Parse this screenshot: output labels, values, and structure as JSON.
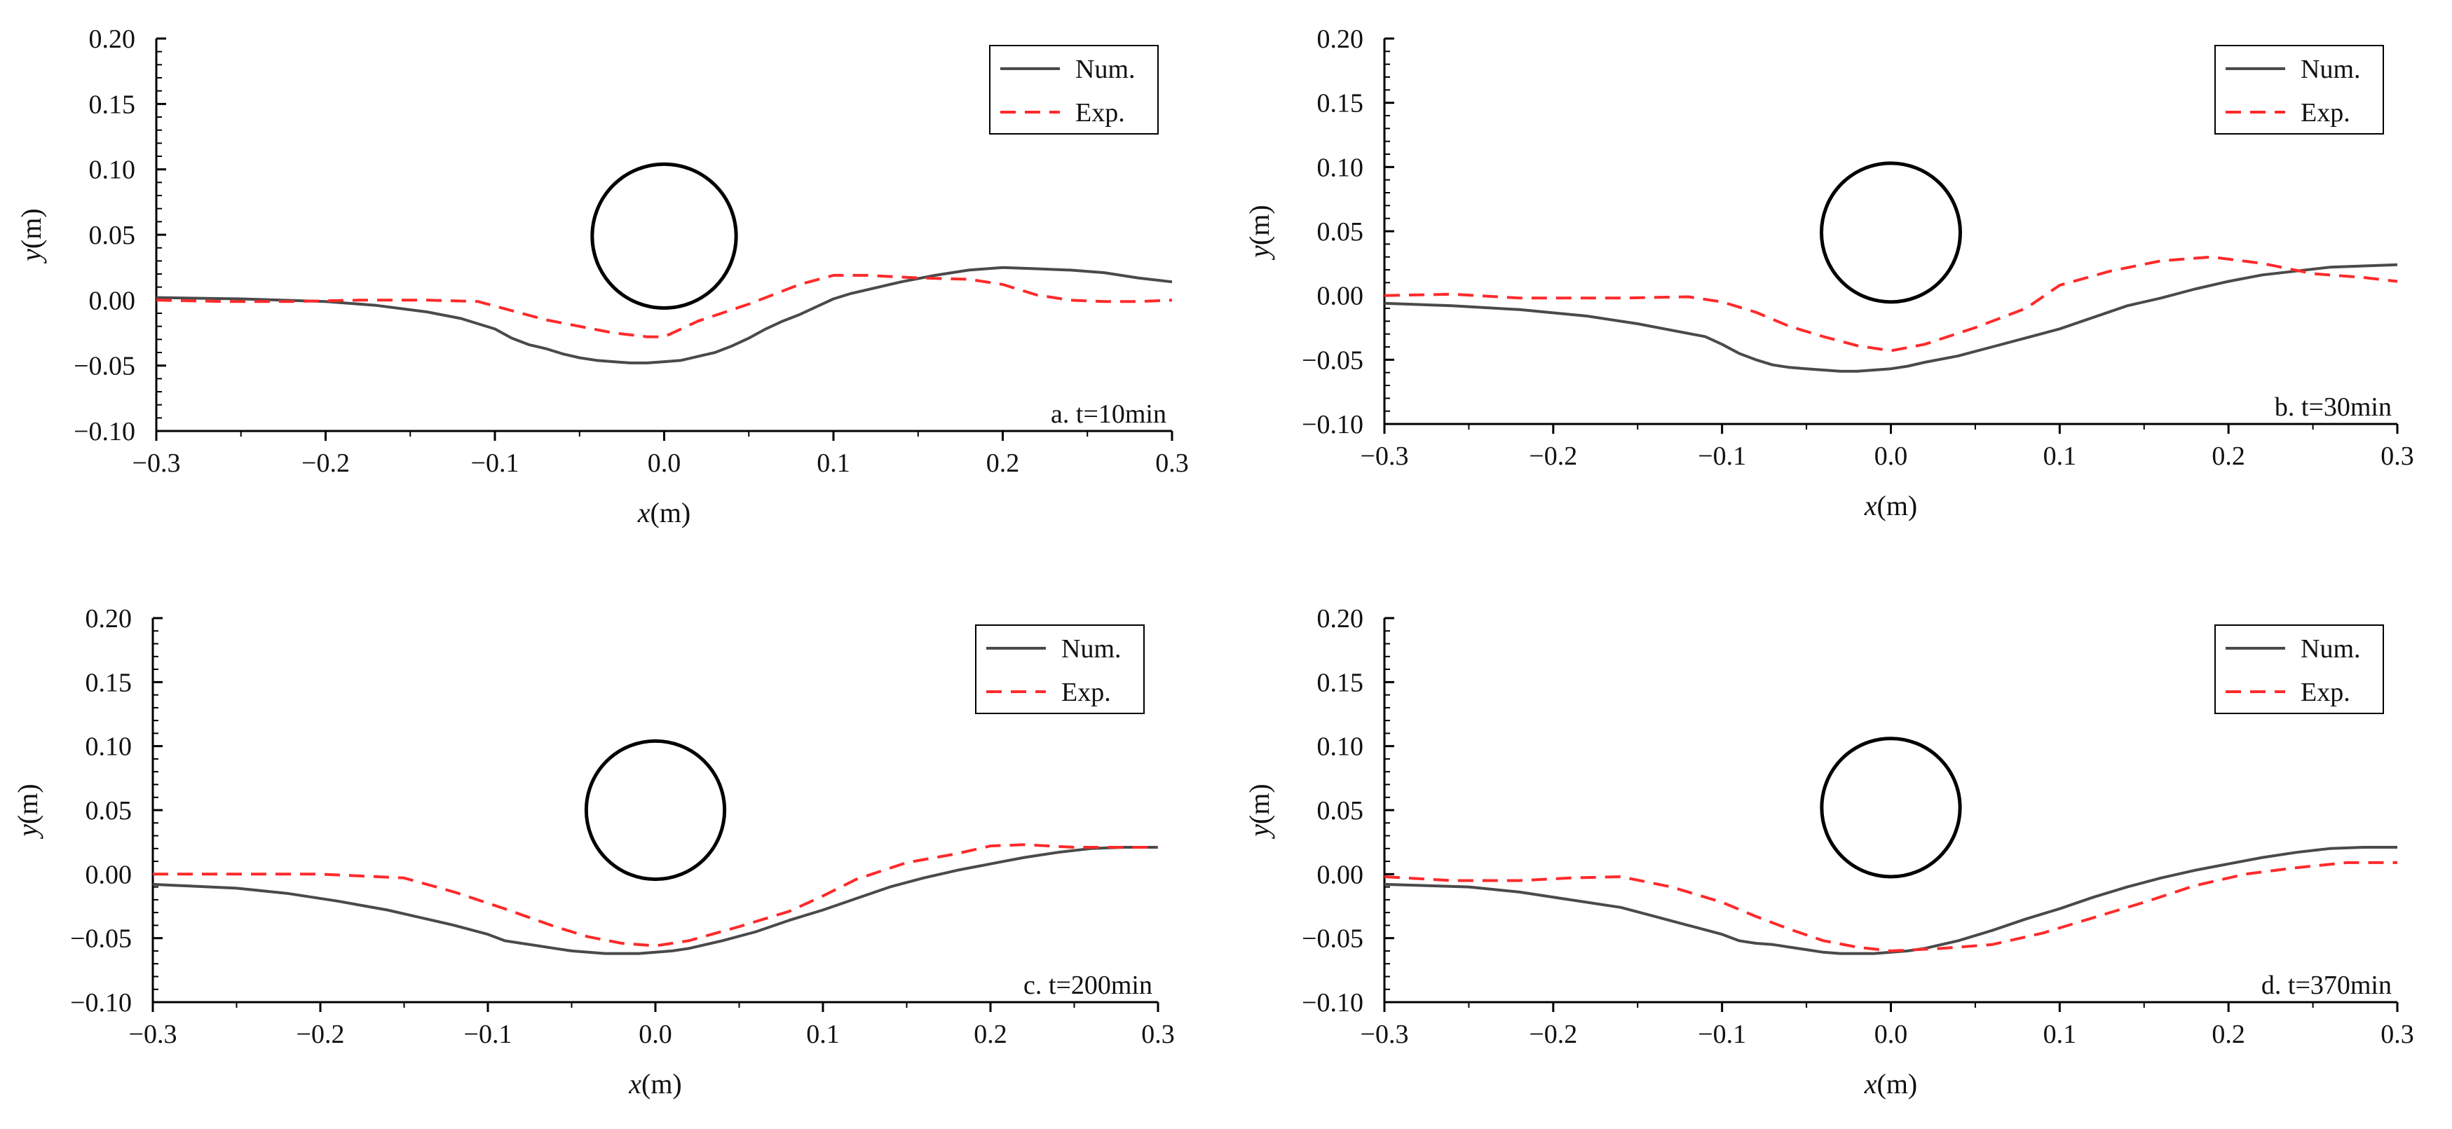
{
  "colors": {
    "num": "#4a4a4a",
    "exp": "#ff2a2a",
    "axis": "#000000",
    "pier": "#000000"
  },
  "chart_data": [
    {
      "type": "line",
      "annotation": "a. t=10min",
      "xlabel_italic": "x",
      "xlabel_unit": "(m)",
      "ylabel_italic": "y",
      "ylabel_unit": "(m)",
      "xlim": [
        -0.3,
        0.3
      ],
      "ylim": [
        -0.1,
        0.2
      ],
      "xticks": [
        "−0.3",
        "−0.2",
        "−0.1",
        "0.0",
        "0.1",
        "0.2",
        "0.3"
      ],
      "yticks": [
        "−0.10",
        "−0.05",
        "0.00",
        "0.05",
        "0.10",
        "0.15",
        "0.20"
      ],
      "legend_position": "top-right",
      "pier": {
        "cx": 0.0,
        "cy": 0.049,
        "r": 0.055
      },
      "series": [
        {
          "name": "Num.",
          "style": "solid",
          "x": [
            -0.3,
            -0.25,
            -0.2,
            -0.17,
            -0.14,
            -0.12,
            -0.1,
            -0.09,
            -0.08,
            -0.07,
            -0.06,
            -0.05,
            -0.04,
            -0.03,
            -0.02,
            -0.01,
            0.0,
            0.01,
            0.02,
            0.03,
            0.04,
            0.05,
            0.06,
            0.07,
            0.08,
            0.09,
            0.1,
            0.11,
            0.12,
            0.14,
            0.16,
            0.18,
            0.2,
            0.22,
            0.24,
            0.26,
            0.28,
            0.3
          ],
          "y": [
            0.002,
            0.001,
            -0.001,
            -0.004,
            -0.009,
            -0.014,
            -0.022,
            -0.029,
            -0.034,
            -0.037,
            -0.041,
            -0.044,
            -0.046,
            -0.047,
            -0.048,
            -0.048,
            -0.047,
            -0.046,
            -0.043,
            -0.04,
            -0.035,
            -0.029,
            -0.022,
            -0.016,
            -0.011,
            -0.005,
            0.001,
            0.005,
            0.008,
            0.014,
            0.019,
            0.023,
            0.025,
            0.024,
            0.023,
            0.021,
            0.017,
            0.014
          ]
        },
        {
          "name": "Exp.",
          "style": "dashed",
          "x": [
            -0.3,
            -0.26,
            -0.22,
            -0.18,
            -0.14,
            -0.11,
            -0.09,
            -0.07,
            -0.05,
            -0.03,
            -0.01,
            0.0,
            0.02,
            0.05,
            0.08,
            0.1,
            0.12,
            0.15,
            0.18,
            0.2,
            0.22,
            0.24,
            0.26,
            0.28,
            0.3
          ],
          "y": [
            0.0,
            -0.001,
            -0.001,
            0.0,
            0.0,
            -0.001,
            -0.008,
            -0.015,
            -0.02,
            -0.025,
            -0.028,
            -0.028,
            -0.016,
            -0.003,
            0.012,
            0.019,
            0.019,
            0.017,
            0.016,
            0.012,
            0.004,
            0.0,
            -0.001,
            -0.001,
            0.0
          ]
        }
      ]
    },
    {
      "type": "line",
      "annotation": "b. t=30min",
      "xlabel_italic": "x",
      "xlabel_unit": "(m)",
      "ylabel_italic": "y",
      "ylabel_unit": "(m)",
      "xlim": [
        -0.3,
        0.3
      ],
      "ylim": [
        -0.1,
        0.2
      ],
      "xticks": [
        "−0.3",
        "−0.2",
        "−0.1",
        "0.0",
        "0.1",
        "0.2",
        "0.3"
      ],
      "yticks": [
        "−0.10",
        "−0.05",
        "0.00",
        "0.05",
        "0.10",
        "0.15",
        "0.20"
      ],
      "legend_position": "top-right",
      "pier": {
        "cx": 0.0,
        "cy": 0.049,
        "r": 0.054
      },
      "series": [
        {
          "name": "Num.",
          "style": "solid",
          "x": [
            -0.3,
            -0.26,
            -0.22,
            -0.18,
            -0.15,
            -0.13,
            -0.11,
            -0.1,
            -0.09,
            -0.08,
            -0.07,
            -0.06,
            -0.05,
            -0.04,
            -0.03,
            -0.02,
            -0.01,
            0.0,
            0.01,
            0.02,
            0.04,
            0.06,
            0.08,
            0.1,
            0.12,
            0.14,
            0.16,
            0.18,
            0.2,
            0.22,
            0.24,
            0.26,
            0.28,
            0.3
          ],
          "y": [
            -0.006,
            -0.008,
            -0.011,
            -0.016,
            -0.022,
            -0.027,
            -0.032,
            -0.038,
            -0.045,
            -0.05,
            -0.054,
            -0.056,
            -0.057,
            -0.058,
            -0.059,
            -0.059,
            -0.058,
            -0.057,
            -0.055,
            -0.052,
            -0.047,
            -0.04,
            -0.033,
            -0.026,
            -0.017,
            -0.008,
            -0.002,
            0.005,
            0.011,
            0.016,
            0.019,
            0.022,
            0.023,
            0.024
          ]
        },
        {
          "name": "Exp.",
          "style": "dashed",
          "x": [
            -0.3,
            -0.26,
            -0.22,
            -0.16,
            -0.12,
            -0.1,
            -0.08,
            -0.06,
            -0.04,
            -0.02,
            0.0,
            0.02,
            0.05,
            0.08,
            0.1,
            0.13,
            0.16,
            0.19,
            0.22,
            0.25,
            0.28,
            0.3
          ],
          "y": [
            0.0,
            0.001,
            -0.002,
            -0.002,
            -0.001,
            -0.005,
            -0.013,
            -0.024,
            -0.032,
            -0.039,
            -0.043,
            -0.038,
            -0.025,
            -0.01,
            0.008,
            0.019,
            0.027,
            0.03,
            0.025,
            0.017,
            0.014,
            0.011
          ]
        }
      ]
    },
    {
      "type": "line",
      "annotation": "c. t=200min",
      "xlabel_italic": "x",
      "xlabel_unit": "(m)",
      "ylabel_italic": "y",
      "ylabel_unit": "(m)",
      "xlim": [
        -0.3,
        0.3
      ],
      "ylim": [
        -0.1,
        0.2
      ],
      "xticks": [
        "−0.3",
        "−0.2",
        "−0.1",
        "0.0",
        "0.1",
        "0.2",
        "0.3"
      ],
      "yticks": [
        "−0.10",
        "−0.05",
        "0.00",
        "0.05",
        "0.10",
        "0.15",
        "0.20"
      ],
      "legend_position": "top-right",
      "pier": {
        "cx": 0.0,
        "cy": 0.05,
        "r": 0.054
      },
      "series": [
        {
          "name": "Num.",
          "style": "solid",
          "x": [
            -0.3,
            -0.25,
            -0.22,
            -0.19,
            -0.16,
            -0.14,
            -0.12,
            -0.1,
            -0.09,
            -0.08,
            -0.07,
            -0.06,
            -0.05,
            -0.04,
            -0.03,
            -0.02,
            -0.01,
            0.0,
            0.01,
            0.02,
            0.04,
            0.06,
            0.08,
            0.1,
            0.12,
            0.14,
            0.16,
            0.18,
            0.2,
            0.22,
            0.24,
            0.26,
            0.28,
            0.3
          ],
          "y": [
            -0.008,
            -0.011,
            -0.015,
            -0.021,
            -0.028,
            -0.034,
            -0.04,
            -0.047,
            -0.052,
            -0.054,
            -0.056,
            -0.058,
            -0.06,
            -0.061,
            -0.062,
            -0.062,
            -0.062,
            -0.061,
            -0.06,
            -0.058,
            -0.052,
            -0.045,
            -0.036,
            -0.028,
            -0.019,
            -0.01,
            -0.003,
            0.003,
            0.008,
            0.013,
            0.017,
            0.02,
            0.021,
            0.021
          ]
        },
        {
          "name": "Exp.",
          "style": "dashed",
          "x": [
            -0.3,
            -0.25,
            -0.2,
            -0.15,
            -0.12,
            -0.09,
            -0.06,
            -0.04,
            -0.02,
            0.0,
            0.02,
            0.05,
            0.08,
            0.1,
            0.12,
            0.15,
            0.18,
            0.2,
            0.22,
            0.25,
            0.28,
            0.3
          ],
          "y": [
            0.0,
            0.0,
            0.0,
            -0.003,
            -0.014,
            -0.027,
            -0.041,
            -0.049,
            -0.054,
            -0.056,
            -0.052,
            -0.041,
            -0.029,
            -0.017,
            -0.004,
            0.009,
            0.016,
            0.022,
            0.023,
            0.021,
            0.021,
            0.021
          ]
        }
      ]
    },
    {
      "type": "line",
      "annotation": "d. t=370min",
      "xlabel_italic": "x",
      "xlabel_unit": "(m)",
      "ylabel_italic": "y",
      "ylabel_unit": "(m)",
      "xlim": [
        -0.3,
        0.3
      ],
      "ylim": [
        -0.1,
        0.2
      ],
      "xticks": [
        "−0.3",
        "−0.2",
        "−0.1",
        "0.0",
        "0.1",
        "0.2",
        "0.3"
      ],
      "yticks": [
        "−0.10",
        "−0.05",
        "0.00",
        "0.05",
        "0.10",
        "0.15",
        "0.20"
      ],
      "legend_position": "top-right",
      "pier": {
        "cx": 0.0,
        "cy": 0.052,
        "r": 0.054
      },
      "series": [
        {
          "name": "Num.",
          "style": "solid",
          "x": [
            -0.3,
            -0.25,
            -0.22,
            -0.19,
            -0.16,
            -0.14,
            -0.12,
            -0.1,
            -0.09,
            -0.08,
            -0.07,
            -0.06,
            -0.05,
            -0.04,
            -0.03,
            -0.02,
            -0.01,
            0.0,
            0.01,
            0.02,
            0.04,
            0.06,
            0.08,
            0.1,
            0.12,
            0.14,
            0.16,
            0.18,
            0.2,
            0.22,
            0.24,
            0.26,
            0.28,
            0.3
          ],
          "y": [
            -0.008,
            -0.01,
            -0.014,
            -0.02,
            -0.026,
            -0.033,
            -0.04,
            -0.047,
            -0.052,
            -0.054,
            -0.055,
            -0.057,
            -0.059,
            -0.061,
            -0.062,
            -0.062,
            -0.062,
            -0.061,
            -0.06,
            -0.058,
            -0.052,
            -0.044,
            -0.035,
            -0.027,
            -0.018,
            -0.01,
            -0.003,
            0.003,
            0.008,
            0.013,
            0.017,
            0.02,
            0.021,
            0.021
          ]
        },
        {
          "name": "Exp.",
          "style": "dashed",
          "x": [
            -0.3,
            -0.26,
            -0.22,
            -0.19,
            -0.16,
            -0.13,
            -0.1,
            -0.08,
            -0.06,
            -0.04,
            -0.02,
            0.0,
            0.03,
            0.06,
            0.09,
            0.12,
            0.15,
            0.18,
            0.21,
            0.24,
            0.27,
            0.3
          ],
          "y": [
            -0.002,
            -0.005,
            -0.005,
            -0.003,
            -0.002,
            -0.01,
            -0.022,
            -0.033,
            -0.043,
            -0.052,
            -0.057,
            -0.06,
            -0.058,
            -0.055,
            -0.046,
            -0.034,
            -0.022,
            -0.009,
            0.0,
            0.005,
            0.009,
            0.009
          ]
        }
      ]
    }
  ]
}
